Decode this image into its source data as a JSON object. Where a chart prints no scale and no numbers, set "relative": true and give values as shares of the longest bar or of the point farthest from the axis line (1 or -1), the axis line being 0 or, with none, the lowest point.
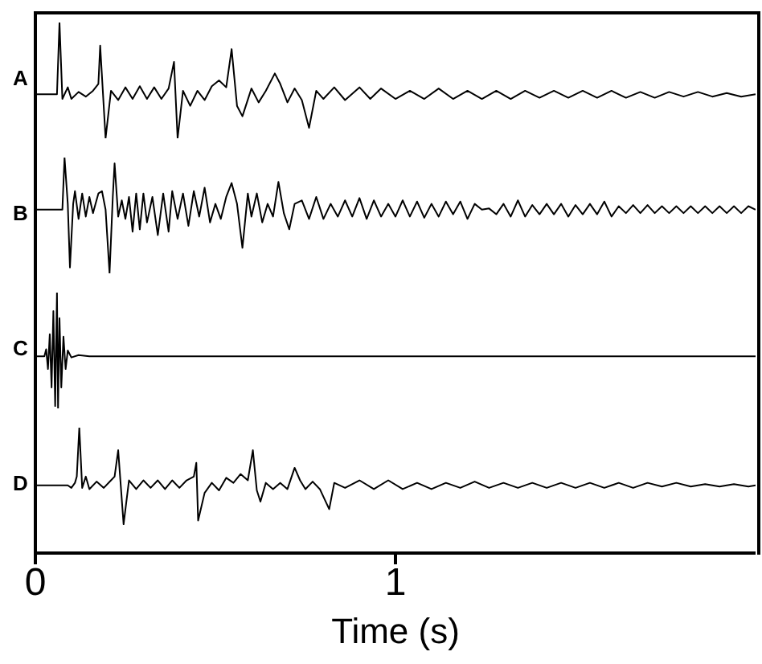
{
  "chart_data": [
    {
      "type": "line",
      "relative": true,
      "xlim": [
        0,
        2
      ],
      "tick_labels": false,
      "x": [
        0,
        0.06,
        0.067,
        0.075,
        0.09,
        0.1,
        0.12,
        0.14,
        0.16,
        0.175,
        0.18,
        0.195,
        0.21,
        0.23,
        0.25,
        0.27,
        0.29,
        0.31,
        0.33,
        0.35,
        0.37,
        0.385,
        0.395,
        0.41,
        0.43,
        0.45,
        0.47,
        0.49,
        0.51,
        0.53,
        0.545,
        0.56,
        0.575,
        0.6,
        0.62,
        0.64,
        0.665,
        0.68,
        0.7,
        0.72,
        0.74,
        0.76,
        0.78,
        0.8,
        0.83,
        0.86,
        0.9,
        0.93,
        0.96,
        1.0,
        1.04,
        1.08,
        1.12,
        1.16,
        1.2,
        1.24,
        1.28,
        1.32,
        1.36,
        1.4,
        1.44,
        1.48,
        1.52,
        1.56,
        1.6,
        1.64,
        1.68,
        1.72,
        1.76,
        1.8,
        1.84,
        1.88,
        1.92,
        1.96,
        2.0
      ],
      "series": [
        {
          "name": "A",
          "color": "#000000",
          "values": [
            0.38,
            0.38,
            1,
            0.34,
            0.44,
            0.34,
            0.4,
            0.36,
            0.41,
            0.47,
            0.8,
            0,
            0.41,
            0.33,
            0.44,
            0.34,
            0.45,
            0.34,
            0.44,
            0.34,
            0.43,
            0.66,
            0,
            0.41,
            0.28,
            0.41,
            0.33,
            0.45,
            0.5,
            0.44,
            0.77,
            0.28,
            0.19,
            0.43,
            0.31,
            0.41,
            0.56,
            0.47,
            0.31,
            0.43,
            0.33,
            0.09,
            0.41,
            0.34,
            0.44,
            0.33,
            0.44,
            0.34,
            0.43,
            0.34,
            0.41,
            0.34,
            0.43,
            0.34,
            0.41,
            0.34,
            0.41,
            0.34,
            0.41,
            0.35,
            0.41,
            0.35,
            0.41,
            0.35,
            0.41,
            0.35,
            0.4,
            0.35,
            0.4,
            0.36,
            0.4,
            0.36,
            0.39,
            0.36,
            0.38
          ]
        }
      ]
    },
    {
      "type": "line",
      "relative": true,
      "xlim": [
        0,
        2
      ],
      "tick_labels": false,
      "x": [
        0,
        0.075,
        0.081,
        0.09,
        0.096,
        0.105,
        0.11,
        0.12,
        0.13,
        0.14,
        0.15,
        0.16,
        0.175,
        0.185,
        0.195,
        0.206,
        0.215,
        0.22,
        0.23,
        0.24,
        0.25,
        0.26,
        0.27,
        0.28,
        0.29,
        0.3,
        0.31,
        0.325,
        0.34,
        0.355,
        0.37,
        0.38,
        0.395,
        0.41,
        0.425,
        0.44,
        0.455,
        0.47,
        0.485,
        0.5,
        0.515,
        0.53,
        0.545,
        0.56,
        0.575,
        0.59,
        0.6,
        0.615,
        0.63,
        0.645,
        0.66,
        0.675,
        0.69,
        0.705,
        0.72,
        0.74,
        0.76,
        0.78,
        0.8,
        0.82,
        0.84,
        0.86,
        0.88,
        0.9,
        0.92,
        0.94,
        0.96,
        0.98,
        1.0,
        1.02,
        1.04,
        1.06,
        1.08,
        1.1,
        1.12,
        1.14,
        1.16,
        1.18,
        1.2,
        1.22,
        1.24,
        1.26,
        1.28,
        1.3,
        1.32,
        1.34,
        1.36,
        1.38,
        1.4,
        1.42,
        1.44,
        1.46,
        1.48,
        1.5,
        1.52,
        1.54,
        1.56,
        1.58,
        1.6,
        1.62,
        1.64,
        1.66,
        1.68,
        1.7,
        1.72,
        1.74,
        1.76,
        1.78,
        1.8,
        1.82,
        1.84,
        1.86,
        1.88,
        1.9,
        1.92,
        1.94,
        1.96,
        1.98,
        2.0
      ],
      "series": [
        {
          "name": "B",
          "color": "#000000",
          "values": [
            0.55,
            0.55,
            1,
            0.6,
            0.05,
            0.6,
            0.71,
            0.47,
            0.69,
            0.49,
            0.66,
            0.52,
            0.69,
            0.71,
            0.55,
            0,
            0.66,
            0.95,
            0.49,
            0.63,
            0.47,
            0.66,
            0.36,
            0.69,
            0.38,
            0.69,
            0.44,
            0.66,
            0.33,
            0.69,
            0.36,
            0.71,
            0.47,
            0.69,
            0.41,
            0.71,
            0.49,
            0.74,
            0.44,
            0.6,
            0.47,
            0.66,
            0.78,
            0.6,
            0.22,
            0.69,
            0.49,
            0.69,
            0.44,
            0.6,
            0.49,
            0.79,
            0.52,
            0.38,
            0.6,
            0.63,
            0.47,
            0.66,
            0.47,
            0.6,
            0.49,
            0.63,
            0.49,
            0.65,
            0.47,
            0.63,
            0.49,
            0.6,
            0.49,
            0.63,
            0.49,
            0.62,
            0.48,
            0.6,
            0.49,
            0.62,
            0.51,
            0.62,
            0.47,
            0.6,
            0.55,
            0.56,
            0.51,
            0.6,
            0.49,
            0.63,
            0.49,
            0.59,
            0.51,
            0.6,
            0.51,
            0.6,
            0.49,
            0.59,
            0.51,
            0.6,
            0.51,
            0.62,
            0.49,
            0.58,
            0.52,
            0.59,
            0.52,
            0.59,
            0.52,
            0.58,
            0.52,
            0.58,
            0.52,
            0.58,
            0.52,
            0.58,
            0.52,
            0.58,
            0.52,
            0.58,
            0.52,
            0.58,
            0.55
          ]
        }
      ]
    },
    {
      "type": "line",
      "relative": true,
      "xlim": [
        0,
        2
      ],
      "tick_labels": false,
      "x": [
        0,
        0.025,
        0.03,
        0.035,
        0.04,
        0.045,
        0.05,
        0.055,
        0.06,
        0.063,
        0.067,
        0.072,
        0.078,
        0.084,
        0.09,
        0.1,
        0.12,
        0.15,
        2.0
      ],
      "series": [
        {
          "name": "C",
          "color": "#000000",
          "values": [
            0.45,
            0.45,
            0.51,
            0.34,
            0.64,
            0.18,
            0.84,
            0.02,
            1,
            0,
            0.78,
            0.18,
            0.62,
            0.34,
            0.5,
            0.44,
            0.46,
            0.45,
            0.45
          ]
        }
      ]
    },
    {
      "type": "line",
      "relative": true,
      "xlim": [
        0,
        2
      ],
      "xticks": [
        0,
        1
      ],
      "tick_labels": "x",
      "xlabel": "Time (s)",
      "x": [
        0,
        0.09,
        0.1,
        0.11,
        0.115,
        0.122,
        0.13,
        0.14,
        0.15,
        0.17,
        0.19,
        0.21,
        0.22,
        0.23,
        0.245,
        0.26,
        0.28,
        0.3,
        0.32,
        0.34,
        0.36,
        0.38,
        0.4,
        0.42,
        0.44,
        0.447,
        0.452,
        0.47,
        0.49,
        0.51,
        0.53,
        0.55,
        0.57,
        0.59,
        0.604,
        0.615,
        0.625,
        0.64,
        0.66,
        0.68,
        0.7,
        0.72,
        0.735,
        0.75,
        0.77,
        0.79,
        0.816,
        0.83,
        0.86,
        0.9,
        0.94,
        0.98,
        1.02,
        1.06,
        1.1,
        1.14,
        1.18,
        1.22,
        1.26,
        1.3,
        1.34,
        1.38,
        1.42,
        1.46,
        1.5,
        1.54,
        1.58,
        1.62,
        1.66,
        1.7,
        1.74,
        1.78,
        1.82,
        1.86,
        1.9,
        1.94,
        1.98,
        2.0
      ],
      "series": [
        {
          "name": "D",
          "color": "#000000",
          "values": [
            0.54,
            0.54,
            0.52,
            0.56,
            0.61,
            1,
            0.52,
            0.61,
            0.51,
            0.57,
            0.52,
            0.58,
            0.61,
            0.82,
            0.23,
            0.58,
            0.51,
            0.58,
            0.52,
            0.58,
            0.51,
            0.58,
            0.52,
            0.58,
            0.61,
            0.72,
            0.26,
            0.48,
            0.56,
            0.5,
            0.6,
            0.56,
            0.63,
            0.58,
            0.82,
            0.5,
            0.41,
            0.56,
            0.51,
            0.56,
            0.51,
            0.68,
            0.58,
            0.51,
            0.57,
            0.51,
            0.35,
            0.56,
            0.52,
            0.58,
            0.51,
            0.58,
            0.51,
            0.56,
            0.51,
            0.56,
            0.52,
            0.57,
            0.52,
            0.56,
            0.52,
            0.56,
            0.52,
            0.56,
            0.52,
            0.56,
            0.52,
            0.56,
            0.52,
            0.56,
            0.53,
            0.56,
            0.53,
            0.55,
            0.53,
            0.55,
            0.53,
            0.54
          ]
        }
      ]
    }
  ]
}
